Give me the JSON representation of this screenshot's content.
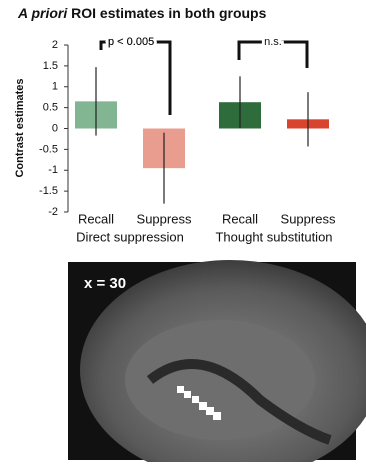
{
  "chart_data": {
    "type": "bar",
    "title_italic": "A priori",
    "title": "ROI estimates in both groups",
    "y_label": "Contrast estimates",
    "categories": [
      "Recall",
      "Suppress",
      "Recall",
      "Suppress"
    ],
    "groups": [
      "Direct suppression",
      "Thought substitution"
    ],
    "values": [
      0.65,
      -0.95,
      0.63,
      0.22
    ],
    "errors": [
      0.82,
      0.85,
      0.62,
      0.65
    ],
    "colors": [
      "#82b591",
      "#e99d8f",
      "#2f6c3b",
      "#d8442e"
    ],
    "ylim": [
      -2,
      2
    ],
    "yticks": [
      -2,
      -1.5,
      -1,
      -0.5,
      0,
      0.5,
      1,
      1.5,
      2
    ],
    "annotations": [
      "p < 0.005",
      "n.s."
    ]
  },
  "image": {
    "label": "x = 30"
  }
}
